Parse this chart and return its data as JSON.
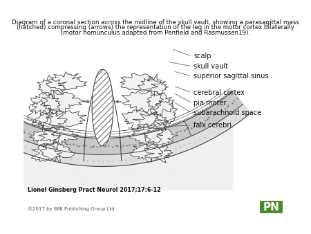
{
  "title_line1": "Diagram of a coronal section across the midline of the skull vault, showing a parasagittal mass",
  "title_line2": "(hatched) compressing (arrows) the representation of the leg in the motor cortex bilaterally",
  "title_line3": "(motor homunculus adapted from Penfield and Rasmussen19).",
  "title_fontsize": 6.3,
  "citation": "Lionel Ginsberg Pract Neurol 2017;17:6-12",
  "copyright": "©2017 by BMJ Publishing Group Ltd",
  "pn_label": "PN",
  "pn_bg": "#4a8c2a",
  "pn_fg": "#ffffff",
  "bg_color": "#ffffff",
  "line_color": "#444444",
  "scalp_fill": "#d0d0d0",
  "skull_fill": "#b8b8b8",
  "brain_bg": "#f5f5f5",
  "stipple_color": "#888888",
  "hatch_color": "#666666",
  "label_fontsize": 7.0,
  "label_color": "#111111",
  "leader_color": "#666666"
}
